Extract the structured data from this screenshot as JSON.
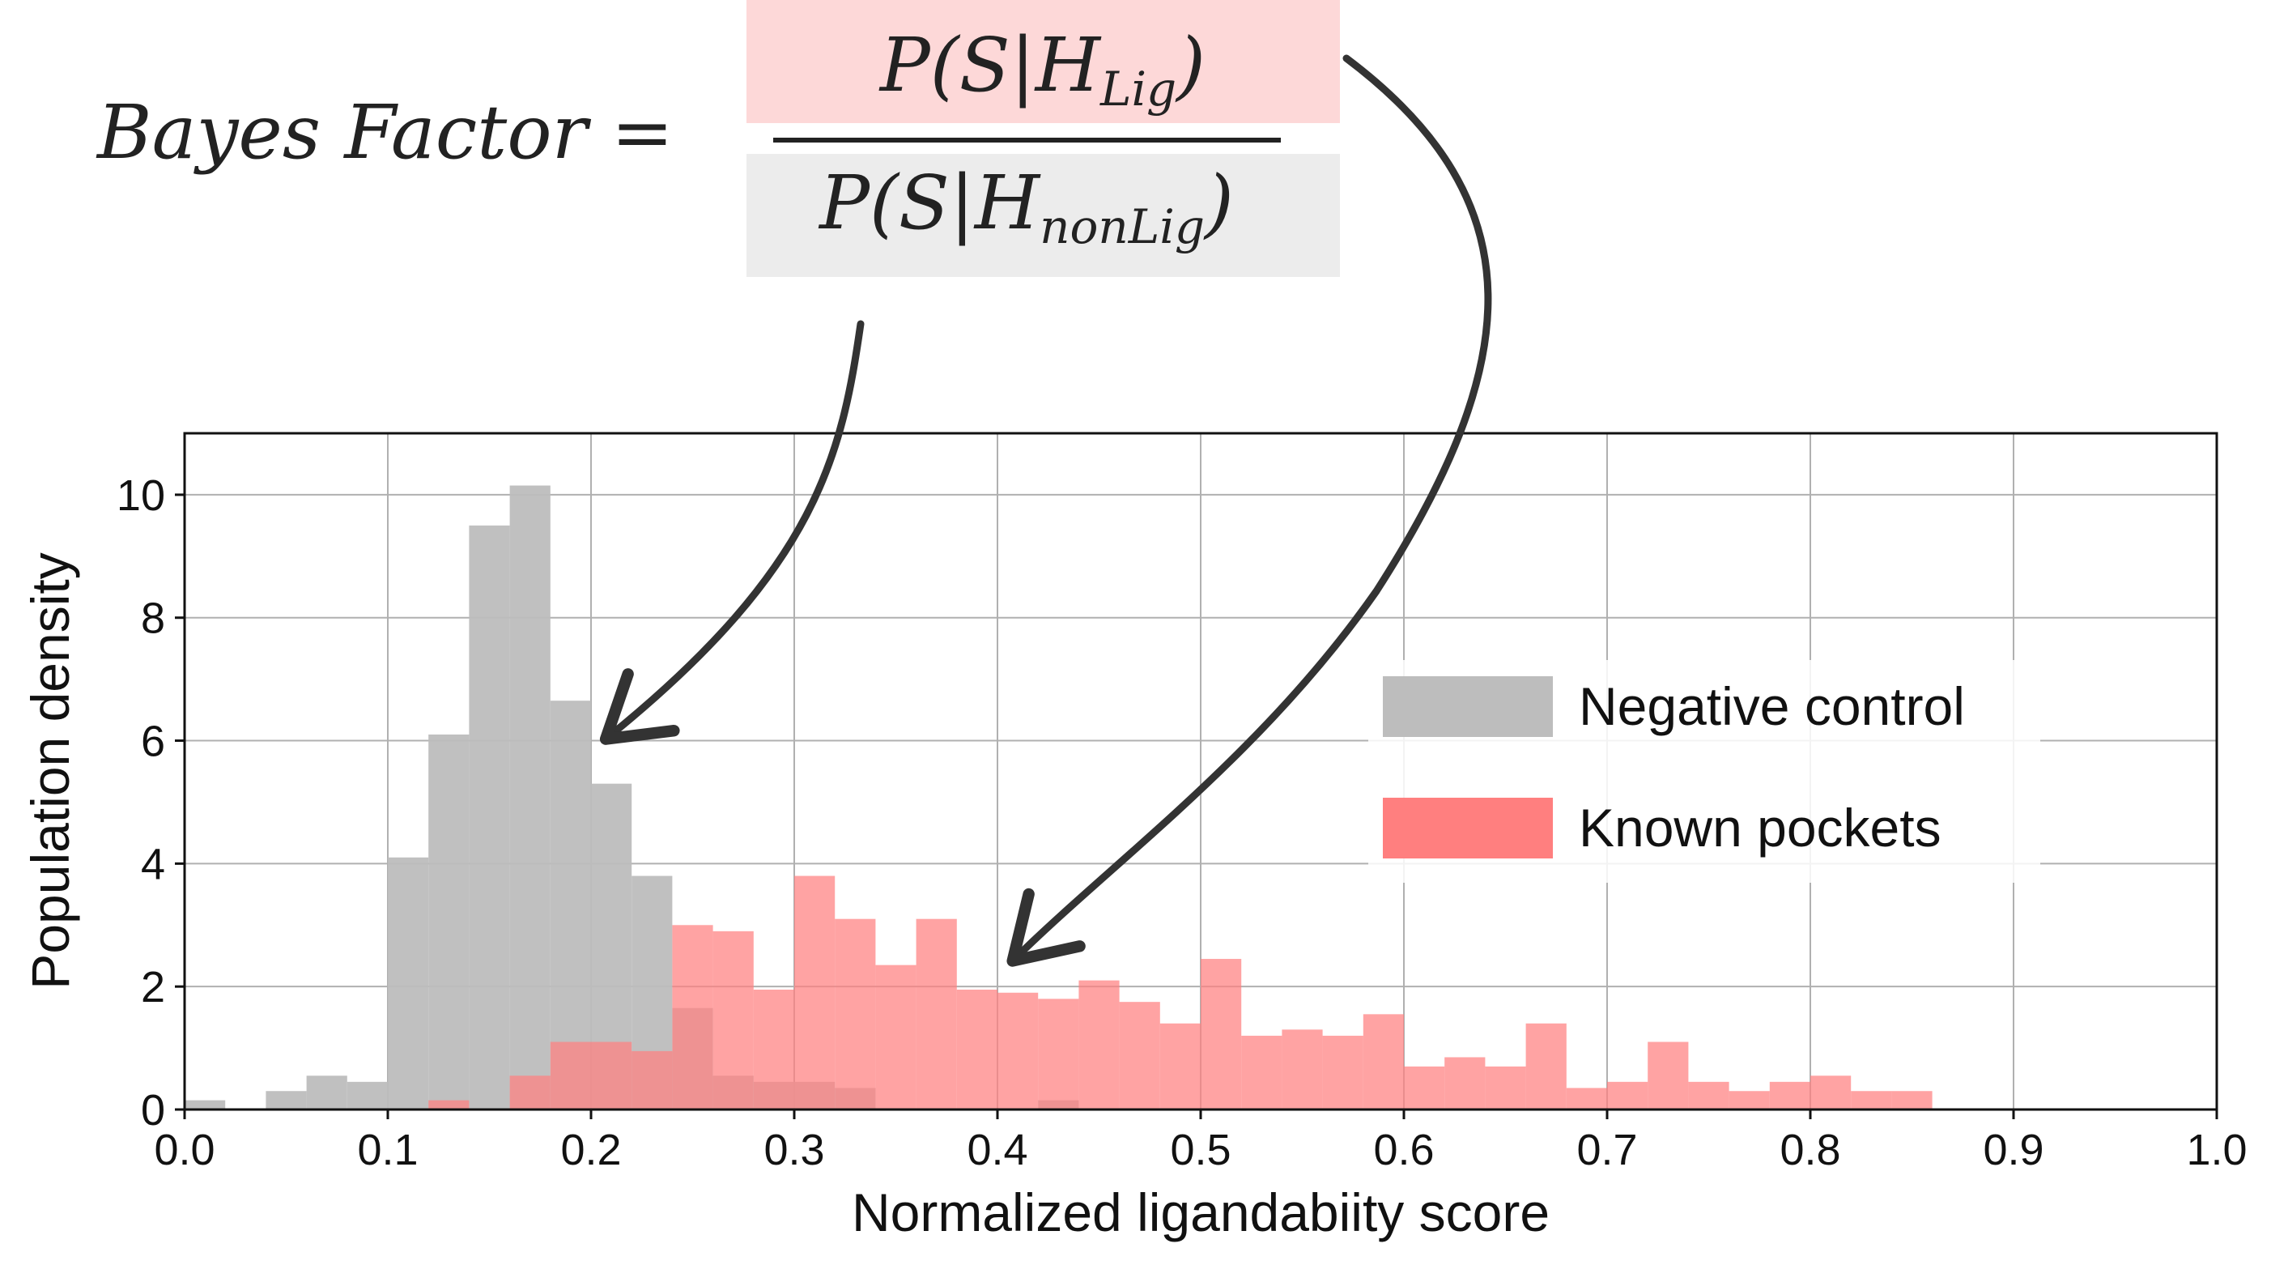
{
  "equation": {
    "lhs": "Bayes Factor =",
    "numerator": {
      "prefix": "P(S",
      "bar": "|",
      "h": "H",
      "sub": "Lig",
      "suffix": ")"
    },
    "denominator": {
      "prefix": "P(S",
      "bar": "|",
      "h": "H",
      "sub": "nonLig",
      "suffix": ")"
    },
    "numerator_highlight": "#fdd8d8",
    "denominator_highlight": "#ececec"
  },
  "chart_data": {
    "type": "bar",
    "subtype": "overlapping histogram",
    "xlabel": "Normalized ligandabiity score",
    "ylabel": "Population density",
    "xlim": [
      0.0,
      1.0
    ],
    "ylim": [
      0,
      11
    ],
    "grid": true,
    "x_ticks": [
      "0.0",
      "0.1",
      "0.2",
      "0.3",
      "0.4",
      "0.5",
      "0.6",
      "0.7",
      "0.8",
      "0.9",
      "1.0"
    ],
    "y_ticks": [
      "0",
      "2",
      "4",
      "6",
      "8",
      "10"
    ],
    "bin_width": 0.02,
    "legend": {
      "placement": "center-right",
      "entries": [
        {
          "label": "Negative control",
          "color": "#bdbdbd"
        },
        {
          "label": "Known pockets",
          "color": "#ff7f7f"
        }
      ]
    },
    "series": [
      {
        "name": "Negative control",
        "color": "#bdbdbd",
        "opacity": 0.95,
        "bins": [
          [
            0.0,
            0.15
          ],
          [
            0.04,
            0.3
          ],
          [
            0.06,
            0.55
          ],
          [
            0.08,
            0.45
          ],
          [
            0.1,
            4.1
          ],
          [
            0.12,
            6.1
          ],
          [
            0.14,
            9.5
          ],
          [
            0.16,
            10.15
          ],
          [
            0.18,
            6.65
          ],
          [
            0.2,
            5.3
          ],
          [
            0.22,
            3.8
          ],
          [
            0.24,
            1.65
          ],
          [
            0.26,
            0.55
          ],
          [
            0.28,
            0.45
          ],
          [
            0.3,
            0.45
          ],
          [
            0.32,
            0.35
          ],
          [
            0.42,
            0.15
          ]
        ]
      },
      {
        "name": "Known pockets",
        "color": "#ff7f7f",
        "opacity": 0.72,
        "bins": [
          [
            0.12,
            0.15
          ],
          [
            0.16,
            0.55
          ],
          [
            0.18,
            1.1
          ],
          [
            0.2,
            1.1
          ],
          [
            0.22,
            0.95
          ],
          [
            0.24,
            3.0
          ],
          [
            0.26,
            2.9
          ],
          [
            0.28,
            1.95
          ],
          [
            0.3,
            3.8
          ],
          [
            0.32,
            3.1
          ],
          [
            0.34,
            2.35
          ],
          [
            0.36,
            3.1
          ],
          [
            0.38,
            1.95
          ],
          [
            0.4,
            1.9
          ],
          [
            0.42,
            1.8
          ],
          [
            0.44,
            2.1
          ],
          [
            0.46,
            1.75
          ],
          [
            0.48,
            1.4
          ],
          [
            0.5,
            2.45
          ],
          [
            0.52,
            1.2
          ],
          [
            0.54,
            1.3
          ],
          [
            0.56,
            1.2
          ],
          [
            0.58,
            1.55
          ],
          [
            0.6,
            0.7
          ],
          [
            0.62,
            0.85
          ],
          [
            0.64,
            0.7
          ],
          [
            0.66,
            1.4
          ],
          [
            0.68,
            0.35
          ],
          [
            0.7,
            0.45
          ],
          [
            0.72,
            1.1
          ],
          [
            0.74,
            0.45
          ],
          [
            0.76,
            0.3
          ],
          [
            0.78,
            0.45
          ],
          [
            0.8,
            0.55
          ],
          [
            0.82,
            0.3
          ],
          [
            0.84,
            0.3
          ]
        ]
      }
    ],
    "annotations": [
      {
        "kind": "arrow",
        "from": "denominator",
        "to_x": 0.21,
        "to_y": 6.1
      },
      {
        "kind": "arrow",
        "from": "numerator",
        "to_x": 0.41,
        "to_y": 2.5
      }
    ]
  }
}
